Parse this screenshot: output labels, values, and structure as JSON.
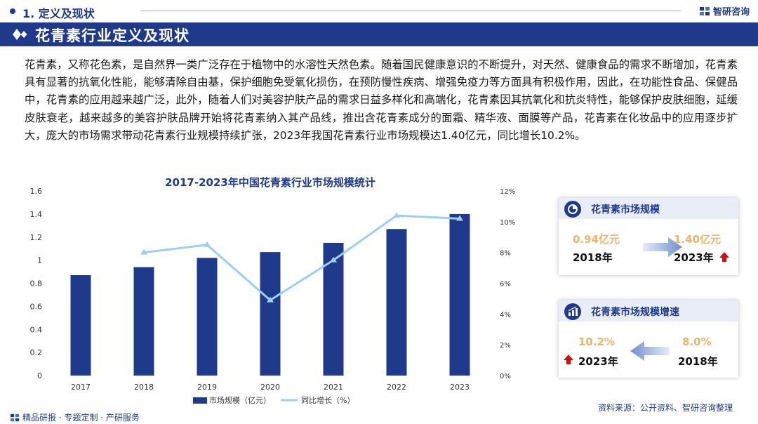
{
  "header": {
    "section_label": "1. 定义及现状",
    "brand": "智研咨询",
    "banner_title": "花青素行业定义及现状"
  },
  "paragraph": "花青素，又称花色素，是自然界一类广泛存在于植物中的水溶性天然色素。随着国民健康意识的不断提升，对天然、健康食品的需求不断增加，花青素具有显著的抗氧化性能，能够清除自由基，保护细胞免受氧化损伤，在预防慢性疾病、增强免疫力等方面具有积极作用，因此，在功能性食品、保健品中，花青素的应用越来越广泛，此外，随着人们对美容护肤产品的需求日益多样化和高端化，花青素因其抗氧化和抗炎特性，能够保护皮肤细胞，延缓皮肤衰老，越来越多的美容护肤品牌开始将花青素纳入其产品线，推出含花青素成分的面霜、精华液、面膜等产品，花青素在化妆品中的应用逐步扩大，庞大的市场需求带动花青素行业规模持续扩张，2023年我国花青素行业市场规模达1.40亿元，同比增长10.2%。",
  "chart_data": {
    "type": "bar",
    "title": "2017-2023年中国花青素行业市场规模统计",
    "categories": [
      "2017",
      "2018",
      "2019",
      "2020",
      "2021",
      "2022",
      "2023"
    ],
    "series": [
      {
        "name": "市场规模（亿元）",
        "type": "bar",
        "axis": "left",
        "values": [
          0.87,
          0.94,
          1.02,
          1.07,
          1.15,
          1.27,
          1.4
        ]
      },
      {
        "name": "同比增长（%）",
        "type": "line",
        "axis": "right",
        "values": [
          null,
          8.0,
          8.5,
          4.9,
          7.5,
          10.4,
          10.2
        ]
      }
    ],
    "y_left": {
      "min": 0,
      "max": 1.6,
      "ticks": [
        "0",
        "0.2",
        "0.4",
        "0.6",
        "0.8",
        "1",
        "1.2",
        "1.4",
        "1.6"
      ]
    },
    "y_right": {
      "min": 0,
      "max": 12,
      "ticks": [
        "0%",
        "2%",
        "4%",
        "6%",
        "8%",
        "10%",
        "12%"
      ]
    },
    "legend": "bottom",
    "colors": {
      "bar": "#1f3a8a",
      "line": "#9ccff0"
    }
  },
  "cards": {
    "market_size": {
      "title": "花青素市场规模",
      "left_value": "0.94亿元",
      "left_year": "2018年",
      "right_value": "1.40亿元",
      "right_year": "2023年"
    },
    "growth": {
      "title": "花青素市场规模增速",
      "left_value": "10.2%",
      "left_year": "2023年",
      "right_value": "8.0%",
      "right_year": "2018年"
    }
  },
  "footer": {
    "left": "精品研报 · 专题定制 · 产研服务",
    "right": "资料来源：公开资料、智研咨询整理"
  },
  "colors": {
    "primary": "#1f3a8a",
    "accent_orange": "#f0b36b",
    "up_red": "#cc1111"
  }
}
